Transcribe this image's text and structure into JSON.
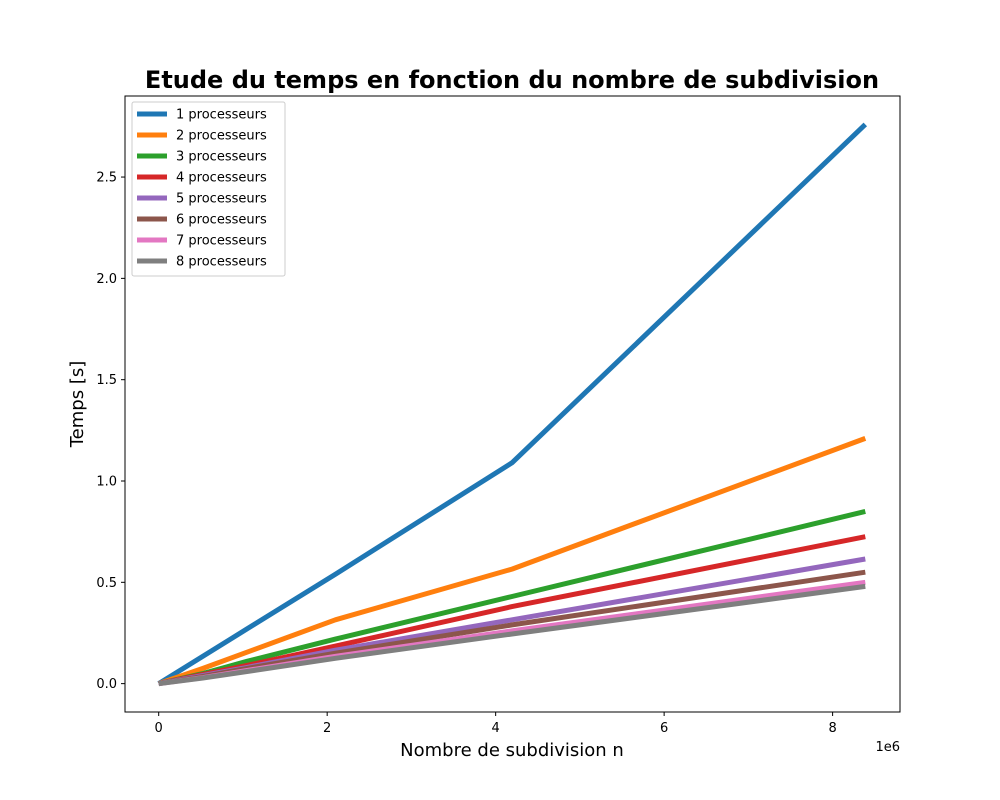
{
  "chart_data": {
    "type": "line",
    "title": "Etude du temps en fonction du nombre de subdivision",
    "xlabel": "Nombre de subdivision n",
    "ylabel": "Temps [s]",
    "x_offset_text": "1e6",
    "xlim": [
      -400000,
      8800000
    ],
    "ylim": [
      -0.14,
      2.9
    ],
    "xticks": [
      0,
      2000000,
      4000000,
      6000000,
      8000000
    ],
    "xtick_labels": [
      "0",
      "2",
      "4",
      "6",
      "8"
    ],
    "yticks": [
      0.0,
      0.5,
      1.0,
      1.5,
      2.0,
      2.5
    ],
    "ytick_labels": [
      "0.0",
      "0.5",
      "1.0",
      "1.5",
      "2.0",
      "2.5"
    ],
    "grid": false,
    "legend_position": "top-left",
    "x": [
      0,
      524288,
      1048576,
      2097152,
      4194304,
      8388608
    ],
    "series": [
      {
        "name": "1 processeurs",
        "color": "#1f77b4",
        "values": [
          0.0,
          0.135,
          0.27,
          0.54,
          1.09,
          2.76
        ]
      },
      {
        "name": "2 processeurs",
        "color": "#ff7f0e",
        "values": [
          0.0,
          0.075,
          0.155,
          0.315,
          0.565,
          1.21
        ]
      },
      {
        "name": "3 processeurs",
        "color": "#2ca02c",
        "values": [
          0.0,
          0.05,
          0.11,
          0.22,
          0.43,
          0.85
        ]
      },
      {
        "name": "4 processeurs",
        "color": "#d62728",
        "values": [
          0.0,
          0.045,
          0.09,
          0.185,
          0.38,
          0.725
        ]
      },
      {
        "name": "5 processeurs",
        "color": "#9467bd",
        "values": [
          0.0,
          0.04,
          0.08,
          0.165,
          0.315,
          0.615
        ]
      },
      {
        "name": "6 processeurs",
        "color": "#8c564b",
        "values": [
          0.0,
          0.035,
          0.075,
          0.15,
          0.29,
          0.55
        ]
      },
      {
        "name": "7 processeurs",
        "color": "#e377c2",
        "values": [
          0.0,
          0.03,
          0.065,
          0.135,
          0.26,
          0.5
        ]
      },
      {
        "name": "8 processeurs",
        "color": "#7f7f7f",
        "values": [
          0.0,
          0.028,
          0.06,
          0.125,
          0.245,
          0.48
        ]
      }
    ]
  }
}
